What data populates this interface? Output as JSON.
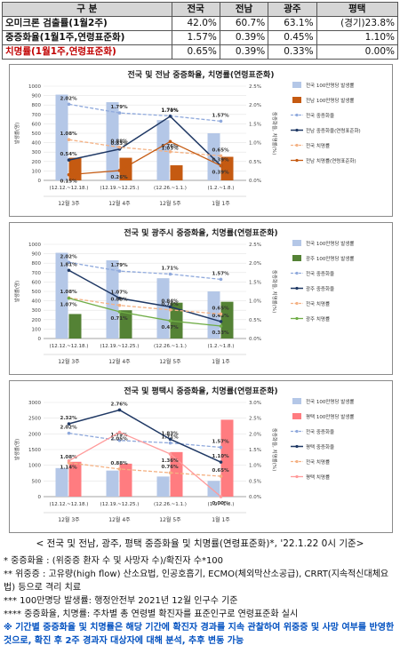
{
  "summary": {
    "headers": [
      "구 분",
      "전국",
      "전남",
      "광주",
      "평택"
    ],
    "rows": [
      {
        "label": "오미크론 검출률(1월2주)",
        "values": [
          "42.0%",
          "60.7%",
          "63.1%",
          "(경기)23.8%"
        ]
      },
      {
        "label": "중증화율(1월1주,연령표준화)",
        "values": [
          "1.57%",
          "0.39%",
          "0.45%",
          "1.10%"
        ]
      },
      {
        "label": "치명률(1월1주,연령표준화)",
        "values": [
          "0.65%",
          "0.39%",
          "0.33%",
          "0.00%"
        ]
      }
    ]
  },
  "colors": {
    "national_bar": "#b4c7e7",
    "national_severe": "#8fa9dc",
    "national_fatal": "#f4b183",
    "region_line": "#1f3864",
    "jeonnam_bar": "#c55a11",
    "gwangju_bar": "#548235",
    "gwangju_fatal": "#70ad47",
    "pyeongtaek_bar": "#ff7c80",
    "pyeongtaek_fatal": "#ff9a9a",
    "note_highlight": "#0050c0"
  },
  "chart_data": [
    {
      "type": "bar",
      "title": "전국 및 전남 중증화율, 치명률(연령표준화)",
      "ylabel": "발생률(명)",
      "y2label": "중증화율, 치명률(%)",
      "ylim": [
        0,
        1000
      ],
      "y2lim": [
        0,
        2.5
      ],
      "yticks": [
        "0",
        "100",
        "200",
        "300",
        "400",
        "500",
        "600",
        "700",
        "800",
        "900",
        "1000"
      ],
      "y2ticks": [
        "0.0%",
        "0.5%",
        "1.0%",
        "1.5%",
        "2.0%",
        "2.5%"
      ],
      "categories": [
        "(12.12.~12.18.)",
        "(12.19.~12.25.)",
        "(12.26.~1.1.)",
        "(1.2.~1.8.)"
      ],
      "week_labels": [
        "12월 3주",
        "12월 4주",
        "12월 5주",
        "1월 1주"
      ],
      "series": [
        {
          "name": "전국 100만명당 발생률",
          "kind": "bar",
          "values": [
            910,
            830,
            640,
            500
          ]
        },
        {
          "name": "전남 100만명당 발생률",
          "kind": "bar",
          "values": [
            240,
            240,
            160,
            250
          ]
        },
        {
          "name": "전국 중증화율",
          "kind": "line",
          "axis": "y2",
          "values": [
            2.02,
            1.79,
            1.71,
            1.57
          ],
          "labels": [
            "2.02%",
            "1.79%",
            "1.71%",
            "1.57%"
          ]
        },
        {
          "name": "전남 중증화율(연령표준화)",
          "kind": "line",
          "axis": "y2",
          "values": [
            0.54,
            0.83,
            1.7,
            0.39
          ],
          "labels": [
            "0.54%",
            "0.83%",
            "1.70%",
            "0.39%"
          ]
        },
        {
          "name": "전국 치명률",
          "kind": "line",
          "axis": "y2",
          "values": [
            1.08,
            0.88,
            0.76,
            0.65
          ],
          "labels": [
            "1.08%",
            "0.88%",
            "0.76%",
            "0.65%"
          ]
        },
        {
          "name": "전남 치명률(연령표준화)",
          "kind": "line",
          "axis": "y2",
          "values": [
            0.15,
            0.26,
            1.03,
            0.39
          ],
          "labels": [
            "0.15%",
            "0.26%",
            "1.03%",
            "0.39%"
          ]
        }
      ]
    },
    {
      "type": "bar",
      "title": "전국 및 광주시 중증화율, 치명률(연령표준화)",
      "ylabel": "발생률(명)",
      "y2label": "중증화율, 치명률(%)",
      "ylim": [
        0,
        1000
      ],
      "y2lim": [
        0,
        2.5
      ],
      "yticks": [
        "0",
        "100",
        "200",
        "300",
        "400",
        "500",
        "600",
        "700",
        "800",
        "900",
        "1000"
      ],
      "y2ticks": [
        "0.0%",
        "0.5%",
        "1.0%",
        "1.5%",
        "2.0%",
        "2.5%"
      ],
      "categories": [
        "(12.12.~12.18.)",
        "(12.19.~12.25.)",
        "(12.26.~1.1.)",
        "(1.2.~1.8.)"
      ],
      "week_labels": [
        "12월 3주",
        "12월 4주",
        "12월 5주",
        "1월 1주"
      ],
      "series": [
        {
          "name": "전국 100만명당 발생률",
          "kind": "bar",
          "values": [
            910,
            830,
            640,
            500
          ]
        },
        {
          "name": "광주 100만명당 발생률",
          "kind": "bar",
          "values": [
            260,
            300,
            380,
            390
          ]
        },
        {
          "name": "전국 중증화율",
          "kind": "line",
          "axis": "y2",
          "values": [
            2.02,
            1.79,
            1.71,
            1.57
          ],
          "labels": [
            "2.02%",
            "1.79%",
            "1.71%",
            "1.57%"
          ]
        },
        {
          "name": "광주 중증화율",
          "kind": "line",
          "axis": "y2",
          "values": [
            1.81,
            1.07,
            0.84,
            0.45
          ],
          "labels": [
            "1.81%",
            "1.07%",
            "0.84%",
            "0.45%"
          ]
        },
        {
          "name": "전국 치명률",
          "kind": "line",
          "axis": "y2",
          "values": [
            1.08,
            0.88,
            0.76,
            0.65
          ],
          "labels": [
            "1.08%",
            "0.88%",
            "0.76%",
            "0.65%"
          ]
        },
        {
          "name": "광주 치명률",
          "kind": "line",
          "axis": "y2",
          "values": [
            1.07,
            0.71,
            0.47,
            0.33
          ],
          "labels": [
            "1.07%",
            "0.71%",
            "0.47%",
            "0.33%"
          ]
        }
      ]
    },
    {
      "type": "bar",
      "title": "전국 및 평택시 중증화율, 치명률(연령표준화)",
      "ylabel": "발생률(명)",
      "y2label": "중증화율, 치명률(%)",
      "ylim": [
        0,
        3000
      ],
      "y2lim": [
        0,
        3.0
      ],
      "yticks": [
        "0",
        "500",
        "1000",
        "1500",
        "2000",
        "2500",
        "3000"
      ],
      "y2ticks": [
        "0.0%",
        "0.5%",
        "1.0%",
        "1.5%",
        "2.0%",
        "2.5%",
        "3.0%"
      ],
      "categories": [
        "(12.12.~12.18.)",
        "(12.19.~12.25.)",
        "(12.26.~1.1.)",
        "(1.2.~1.8.)"
      ],
      "week_labels": [
        "12월 3주",
        "12월 4주",
        "12월 5주",
        "1월 1주"
      ],
      "series": [
        {
          "name": "전국 100만명당 발생률",
          "kind": "bar",
          "values": [
            910,
            830,
            640,
            500
          ]
        },
        {
          "name": "평택 100만명당 발생률",
          "kind": "bar",
          "values": [
            1110,
            1050,
            1420,
            2450
          ]
        },
        {
          "name": "전국 중증화율",
          "kind": "line",
          "axis": "y2",
          "values": [
            2.02,
            1.79,
            1.71,
            1.57
          ],
          "labels": [
            "2.02%",
            "1.79%",
            "1.71%",
            "1.57%"
          ]
        },
        {
          "name": "평택 중증화율",
          "kind": "line",
          "axis": "y2",
          "values": [
            2.32,
            2.76,
            1.83,
            1.1
          ],
          "labels": [
            "2.32%",
            "2.76%",
            "1.83%",
            "1.10%"
          ]
        },
        {
          "name": "전국 치명률",
          "kind": "line",
          "axis": "y2",
          "values": [
            1.08,
            0.88,
            0.76,
            0.65
          ],
          "labels": [
            "1.08%",
            "0.88%",
            "0.76%",
            "0.65%"
          ]
        },
        {
          "name": "평택 치명률",
          "kind": "line",
          "axis": "y2",
          "values": [
            1.14,
            2.05,
            1.36,
            0.0
          ],
          "labels": [
            "1.14%",
            "2.05%",
            "1.36%",
            "0.00%"
          ]
        }
      ]
    }
  ],
  "caption": "< 전국 및 전남, 광주, 평택 중증화율 및 치명률(연령표준화)*, '22.1.22 0시 기준>",
  "notes": [
    {
      "text": "* 중증화율 : (위중증 환자 수 및 사망자 수)/확진자 수*100",
      "highlight": false
    },
    {
      "text": "** 위중증 : 고유량(high flow) 산소요법, 인공호흡기, ECMO(체외막산소공급), CRRT(지속적신대체요법) 등으로 격리 치료",
      "highlight": false
    },
    {
      "text": "*** 100만명당 발생률: 행정안전부 2021년 12월 인구수 기준",
      "highlight": false
    },
    {
      "text": "**** 중증화율, 치명률: 주차별 총 연령별 확진자를 표준인구로 연령표준화 실시",
      "highlight": false
    },
    {
      "text": "※ 기간별 중증화율 및 치명률은 해당 기간에 확진자 경과를 지속 관찰하여 위중증 및 사망 여부를 반영한 것으로, 확진 후 2주 경과자 대상자에 대해 분석, 추후 변동 가능",
      "highlight": true
    }
  ]
}
